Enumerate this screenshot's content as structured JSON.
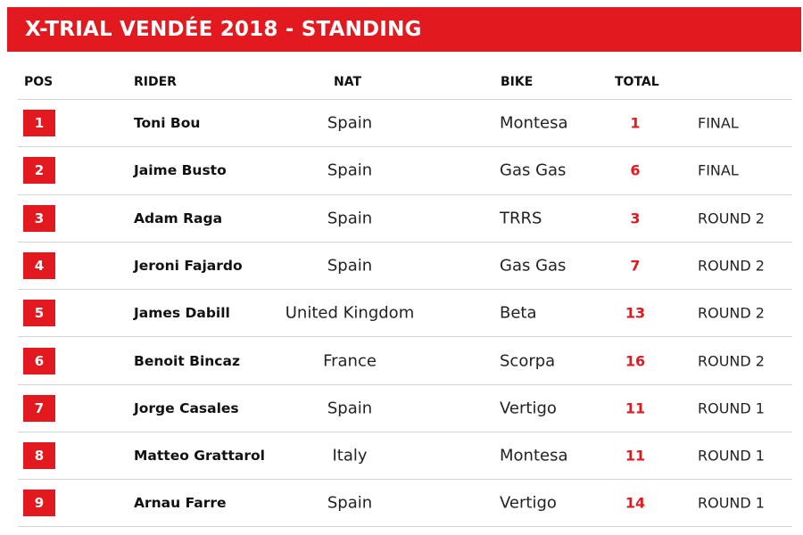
{
  "title": "X-TRIAL VENDÉE 2018 - STANDING",
  "colors": {
    "accent": "#e2191f",
    "divider": "#d4d4d4"
  },
  "headers": {
    "pos": "POS",
    "rider": "RIDER",
    "nat": "NAT",
    "bike": "BIKE",
    "total": "TOTAL"
  },
  "rows": [
    {
      "pos": "1",
      "rider": "Toni Bou",
      "nat": "Spain",
      "bike": "Montesa",
      "total": "1",
      "stage": "FINAL"
    },
    {
      "pos": "2",
      "rider": "Jaime Busto",
      "nat": "Spain",
      "bike": "Gas Gas",
      "total": "6",
      "stage": "FINAL"
    },
    {
      "pos": "3",
      "rider": "Adam Raga",
      "nat": "Spain",
      "bike": "TRRS",
      "total": "3",
      "stage": "ROUND 2"
    },
    {
      "pos": "4",
      "rider": "Jeroni Fajardo",
      "nat": "Spain",
      "bike": "Gas Gas",
      "total": "7",
      "stage": "ROUND 2"
    },
    {
      "pos": "5",
      "rider": "James Dabill",
      "nat": "United Kingdom",
      "bike": "Beta",
      "total": "13",
      "stage": "ROUND 2"
    },
    {
      "pos": "6",
      "rider": "Benoit Bincaz",
      "nat": "France",
      "bike": "Scorpa",
      "total": "16",
      "stage": "ROUND 2"
    },
    {
      "pos": "7",
      "rider": "Jorge Casales",
      "nat": "Spain",
      "bike": "Vertigo",
      "total": "11",
      "stage": "ROUND 1"
    },
    {
      "pos": "8",
      "rider": "Matteo Grattarol",
      "nat": "Italy",
      "bike": "Montesa",
      "total": "11",
      "stage": "ROUND 1"
    },
    {
      "pos": "9",
      "rider": "Arnau Farre",
      "nat": "Spain",
      "bike": "Vertigo",
      "total": "14",
      "stage": "ROUND 1"
    }
  ]
}
